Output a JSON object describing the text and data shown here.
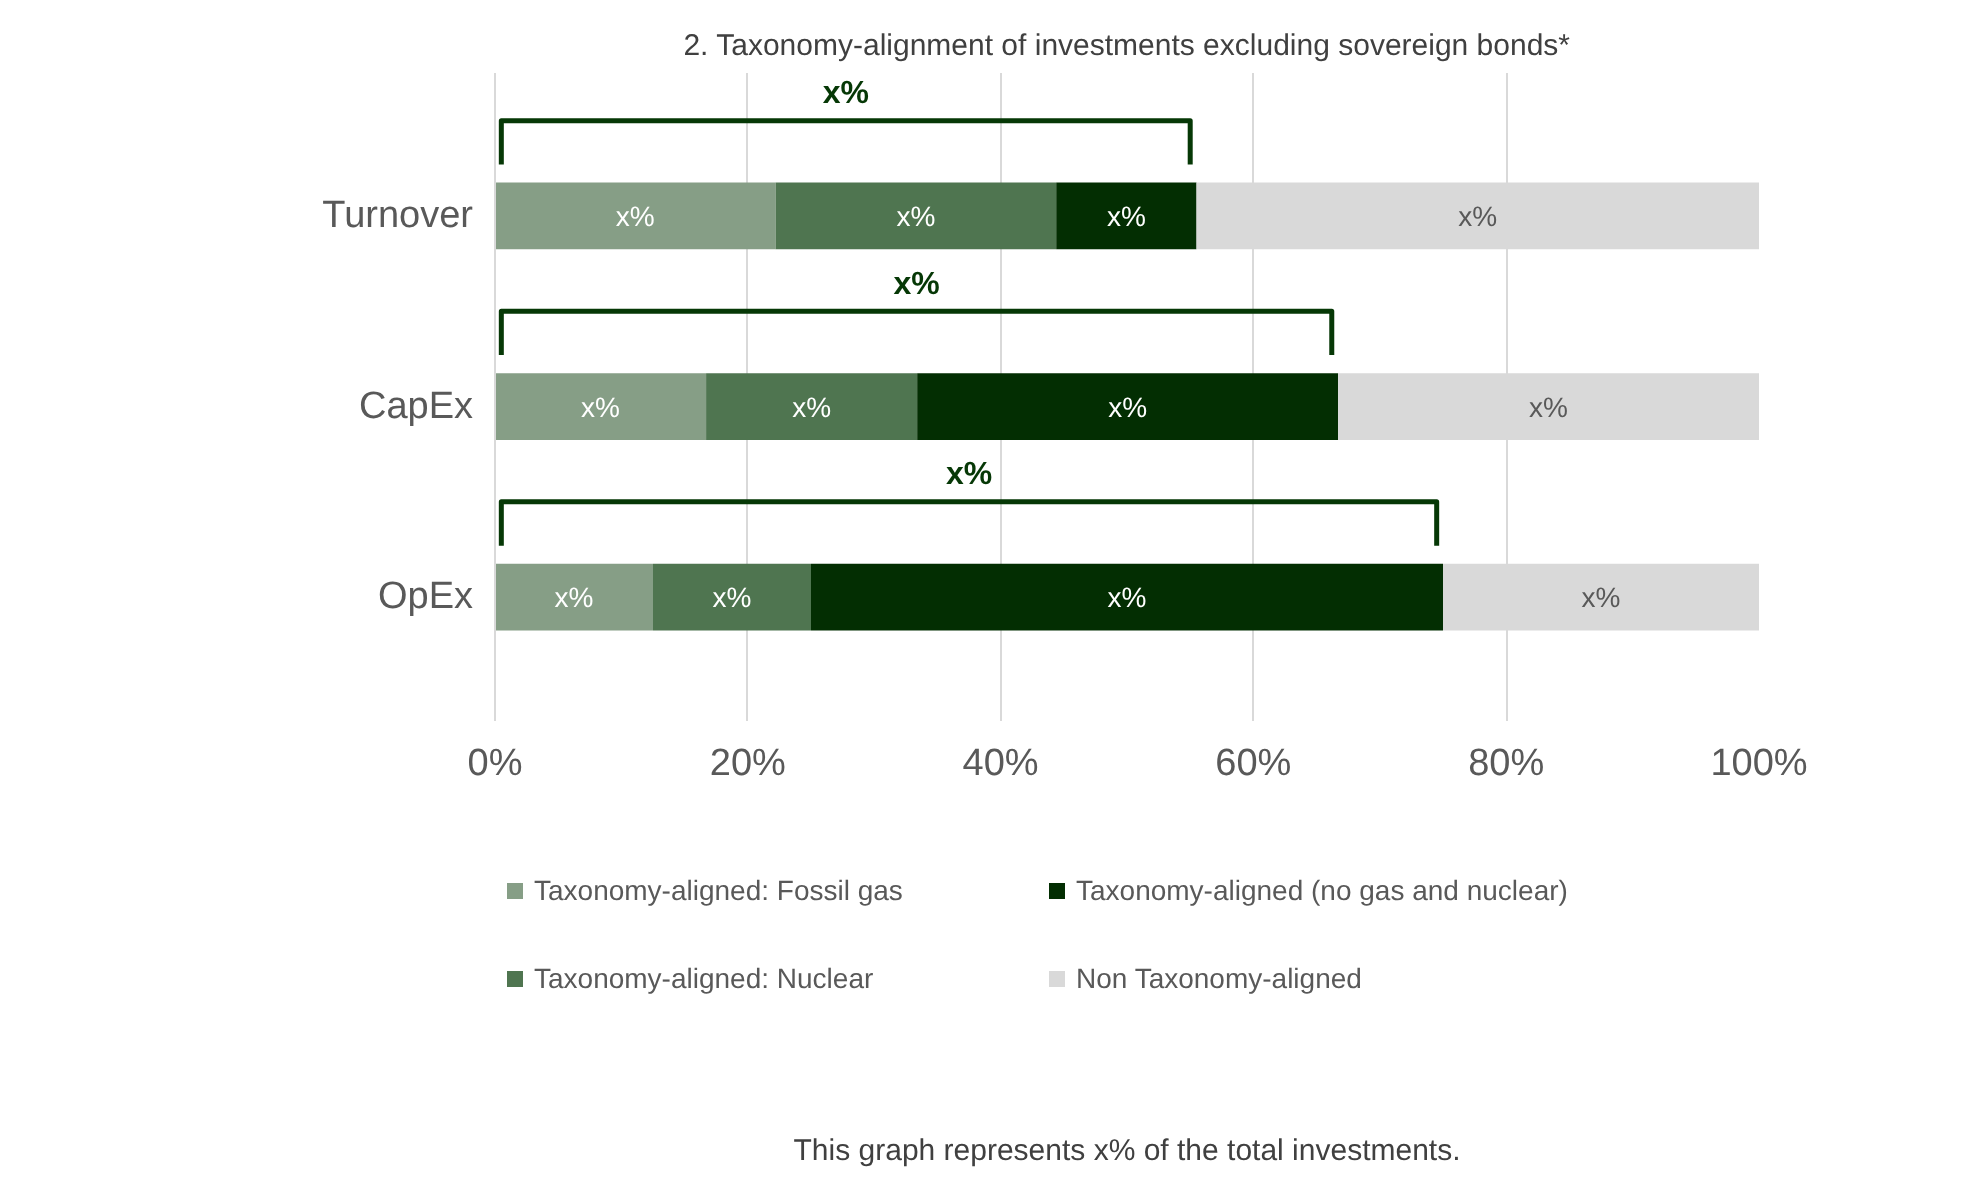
{
  "chart_data": {
    "type": "bar",
    "orientation": "horizontal",
    "stacked": true,
    "title": "2. Taxonomy-alignment of investments excluding sovereign bonds*",
    "categories": [
      "Turnover",
      "CapEx",
      "OpEx"
    ],
    "series": [
      {
        "name": "Taxonomy-aligned: Fossil gas",
        "color": "#869e86",
        "values": [
          22.2,
          16.7,
          12.5
        ],
        "value_labels": [
          "x%",
          "x%",
          "x%"
        ]
      },
      {
        "name": "Taxonomy-aligned: Nuclear",
        "color": "#4f7550",
        "values": [
          22.2,
          16.7,
          12.5
        ],
        "value_labels": [
          "x%",
          "x%",
          "x%"
        ]
      },
      {
        "name": "Taxonomy-aligned (no gas and nuclear)",
        "color": "#032e02",
        "values": [
          11.1,
          33.3,
          50
        ],
        "value_labels": [
          "x%",
          "x%",
          "x%"
        ]
      },
      {
        "name": "Non Taxonomy-aligned",
        "color": "#d9d9d9",
        "values": [
          44.5,
          33.3,
          25
        ],
        "value_labels": [
          "x%",
          "x%",
          "x%"
        ]
      }
    ],
    "xlim": [
      0,
      100
    ],
    "xticks": [
      {
        "value": 0,
        "label": "0%"
      },
      {
        "value": 20,
        "label": "20%"
      },
      {
        "value": 40,
        "label": "40%"
      },
      {
        "value": 60,
        "label": "60%"
      },
      {
        "value": 80,
        "label": "80%"
      },
      {
        "value": 100,
        "label": "100%"
      }
    ],
    "grid": "x",
    "legend": "bottom",
    "annotations": [
      "x%",
      "x%",
      "x%",
      "This graph represents x% of the total investments."
    ]
  }
}
